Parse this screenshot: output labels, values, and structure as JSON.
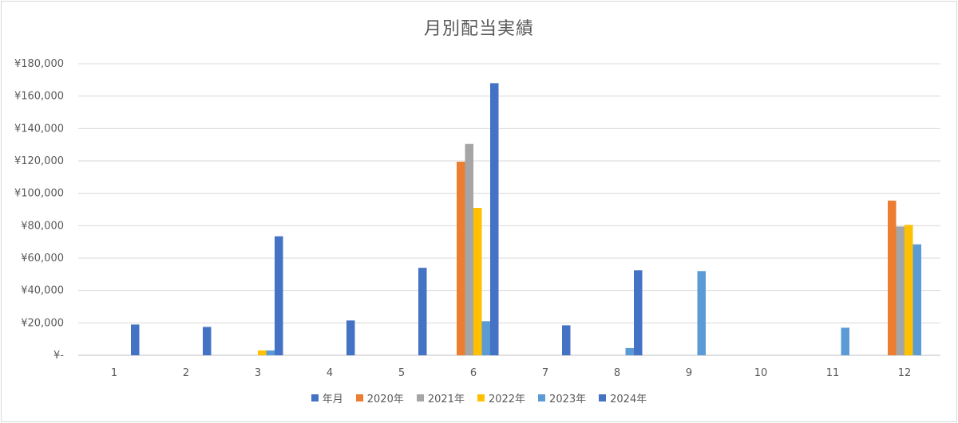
{
  "chart_data": {
    "type": "bar",
    "title": "月別配当実績",
    "categories": [
      "1",
      "2",
      "3",
      "4",
      "5",
      "6",
      "7",
      "8",
      "9",
      "10",
      "11",
      "12"
    ],
    "y_ticks": [
      "¥-",
      "¥20,000",
      "¥40,000",
      "¥60,000",
      "¥80,000",
      "¥100,000",
      "¥120,000",
      "¥140,000",
      "¥160,000",
      "¥180,000"
    ],
    "ylim": [
      0,
      180000
    ],
    "grid": true,
    "legend_position": "bottom",
    "series": [
      {
        "name": "年月",
        "color": "#4472C4",
        "values": [
          0,
          0,
          0,
          0,
          0,
          0,
          0,
          0,
          0,
          0,
          0,
          0
        ]
      },
      {
        "name": "2020年",
        "color": "#ED7D31",
        "values": [
          0,
          0,
          0,
          0,
          0,
          119500,
          0,
          0,
          0,
          0,
          0,
          95500
        ]
      },
      {
        "name": "2021年",
        "color": "#A5A5A5",
        "values": [
          0,
          0,
          0,
          0,
          0,
          130500,
          0,
          0,
          0,
          0,
          0,
          79500
        ]
      },
      {
        "name": "2022年",
        "color": "#FFC000",
        "values": [
          0,
          0,
          3000,
          0,
          0,
          91000,
          0,
          0,
          0,
          0,
          0,
          80500
        ]
      },
      {
        "name": "2023年",
        "color": "#5B9BD5",
        "values": [
          0,
          0,
          3000,
          0,
          0,
          21000,
          0,
          4500,
          52000,
          0,
          17000,
          68500
        ]
      },
      {
        "name": "2024年",
        "color": "#4472C4",
        "values": [
          19000,
          17500,
          73500,
          21500,
          54000,
          168000,
          18500,
          52500,
          0,
          0,
          0,
          0
        ]
      }
    ]
  }
}
